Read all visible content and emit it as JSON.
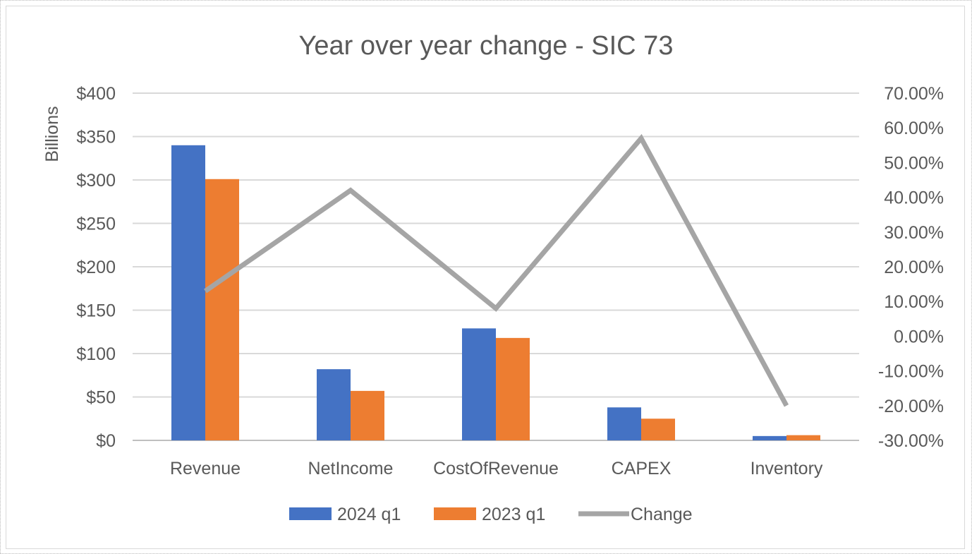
{
  "chart_data": {
    "type": "bar",
    "combo": "bar+line",
    "title": "Year over year change - SIC 73",
    "ylabel": "Billions",
    "categories": [
      "Revenue",
      "NetIncome",
      "CostOfRevenue",
      "CAPEX",
      "Inventory"
    ],
    "series": [
      {
        "name": "2024 q1",
        "type": "bar",
        "axis": "left",
        "values": [
          340,
          82,
          129,
          38,
          5
        ],
        "color": "#4472C4"
      },
      {
        "name": "2023 q1",
        "type": "bar",
        "axis": "left",
        "values": [
          301,
          57,
          118,
          25,
          6
        ],
        "color": "#ED7D31"
      },
      {
        "name": "Change",
        "type": "line",
        "axis": "right",
        "values": [
          0.13,
          0.42,
          0.08,
          0.57,
          -0.2
        ],
        "color": "#A5A5A5"
      }
    ],
    "ylim": [
      0,
      400
    ],
    "yticks": [
      0,
      50,
      100,
      150,
      200,
      250,
      300,
      350,
      400
    ],
    "ytick_labels": [
      "$0",
      "$50",
      "$100",
      "$150",
      "$200",
      "$250",
      "$300",
      "$350",
      "$400"
    ],
    "y2lim": [
      -0.3,
      0.7
    ],
    "y2ticks": [
      -0.3,
      -0.2,
      -0.1,
      0.0,
      0.1,
      0.2,
      0.3,
      0.4,
      0.5,
      0.6,
      0.7
    ],
    "y2tick_labels": [
      "-30.00%",
      "-20.00%",
      "-10.00%",
      "0.00%",
      "10.00%",
      "20.00%",
      "30.00%",
      "40.00%",
      "50.00%",
      "60.00%",
      "70.00%"
    ],
    "grid": true,
    "legend_position": "bottom"
  }
}
